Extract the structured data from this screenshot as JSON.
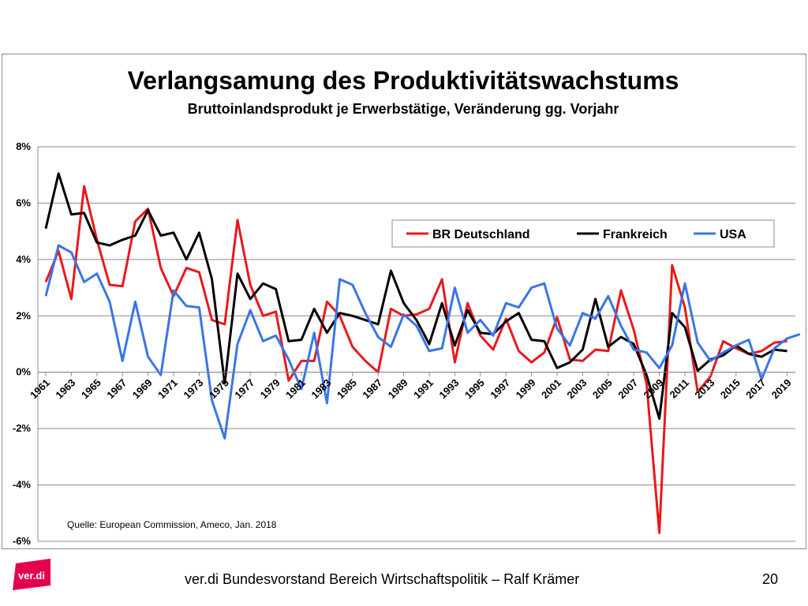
{
  "chart_data": {
    "type": "line",
    "title": "Verlangsamung des Produktivitätswachstums",
    "subtitle": "Bruttoinlandsprodukt je Erwerbstätige, Veränderung gg. Vorjahr",
    "x": [
      1961,
      1962,
      1963,
      1964,
      1965,
      1966,
      1967,
      1968,
      1969,
      1970,
      1971,
      1972,
      1973,
      1974,
      1975,
      1976,
      1977,
      1978,
      1979,
      1980,
      1981,
      1982,
      1983,
      1984,
      1985,
      1986,
      1987,
      1988,
      1989,
      1990,
      1991,
      1992,
      1993,
      1994,
      1995,
      1996,
      1997,
      1998,
      1999,
      2000,
      2001,
      2002,
      2003,
      2004,
      2005,
      2006,
      2007,
      2008,
      2009,
      2010,
      2011,
      2012,
      2013,
      2014,
      2015,
      2016,
      2017,
      2018,
      2019,
      2020
    ],
    "x_tick_labels": [
      "1961",
      "1963",
      "1965",
      "1967",
      "1969",
      "1971",
      "1973",
      "1975",
      "1977",
      "1979",
      "1981",
      "1983",
      "1985",
      "1987",
      "1989",
      "1991",
      "1993",
      "1995",
      "1997",
      "1999",
      "2001",
      "2003",
      "2005",
      "2007",
      "2009",
      "2011",
      "2013",
      "2015",
      "2017",
      "2019"
    ],
    "y_ticks": [
      -6,
      -4,
      -2,
      0,
      2,
      4,
      6,
      8
    ],
    "y_tick_labels": [
      "-6%",
      "-4%",
      "-2%",
      "0%",
      "2%",
      "4%",
      "6%",
      "8%"
    ],
    "ylim": [
      -6,
      8
    ],
    "grid": true,
    "legend_position": "top-right",
    "series": [
      {
        "name": "BR Deutschland",
        "color": "#e8191c",
        "values": [
          3.2,
          4.3,
          2.6,
          6.6,
          4.7,
          3.1,
          3.05,
          5.35,
          5.8,
          3.7,
          2.7,
          3.7,
          3.55,
          1.85,
          1.7,
          5.4,
          3.1,
          2.0,
          2.15,
          -0.3,
          0.4,
          0.4,
          2.5,
          2.0,
          0.9,
          0.4,
          0.0,
          2.25,
          2.0,
          2.05,
          2.25,
          3.3,
          0.35,
          2.45,
          1.3,
          0.8,
          1.9,
          0.75,
          0.35,
          0.7,
          1.95,
          0.45,
          0.4,
          0.8,
          0.75,
          2.9,
          1.5,
          -0.4,
          -5.7,
          3.8,
          2.3,
          -0.7,
          -0.15,
          1.1,
          0.85,
          0.65,
          0.75,
          1.05,
          1.1,
          null
        ]
      },
      {
        "name": "Frankreich",
        "color": "#000000",
        "values": [
          5.1,
          7.05,
          5.6,
          5.65,
          4.6,
          4.5,
          4.7,
          4.85,
          5.75,
          4.85,
          4.95,
          4.0,
          4.95,
          3.3,
          -0.4,
          3.5,
          2.6,
          3.15,
          2.95,
          1.1,
          1.15,
          2.25,
          1.4,
          2.1,
          2.0,
          1.85,
          1.7,
          3.6,
          2.45,
          1.85,
          1.0,
          2.45,
          0.95,
          2.2,
          1.4,
          1.35,
          1.8,
          2.1,
          1.15,
          1.1,
          0.15,
          0.35,
          0.8,
          2.6,
          0.9,
          1.25,
          1.0,
          -0.1,
          -1.65,
          2.1,
          1.6,
          0.05,
          0.45,
          0.6,
          0.95,
          0.65,
          0.55,
          0.8,
          0.75,
          null
        ]
      },
      {
        "name": "USA",
        "color": "#3a75e6",
        "values": [
          2.7,
          4.5,
          4.25,
          3.2,
          3.5,
          2.5,
          0.4,
          2.5,
          0.55,
          -0.1,
          2.9,
          2.35,
          2.3,
          -1.0,
          -2.35,
          1.0,
          2.2,
          1.1,
          1.3,
          0.45,
          -0.6,
          1.4,
          -1.1,
          3.3,
          3.1,
          2.1,
          1.25,
          0.9,
          2.05,
          1.65,
          0.75,
          0.85,
          3.0,
          1.4,
          1.85,
          1.3,
          2.45,
          2.3,
          3.0,
          3.15,
          1.55,
          0.95,
          2.1,
          1.9,
          2.7,
          1.65,
          0.8,
          0.7,
          0.15,
          0.95,
          3.15,
          1.05,
          0.4,
          0.7,
          0.95,
          1.15,
          -0.25,
          0.85,
          1.2,
          1.35
        ]
      }
    ],
    "annotation": "Quelle: European Commission, Ameco, Jan. 2018"
  },
  "footer": {
    "text": "ver.di Bundesvorstand Bereich Wirtschaftspolitik – Ralf Krämer",
    "page_number": "20",
    "logo_text": "ver.di",
    "logo_color": "#e4004f"
  }
}
